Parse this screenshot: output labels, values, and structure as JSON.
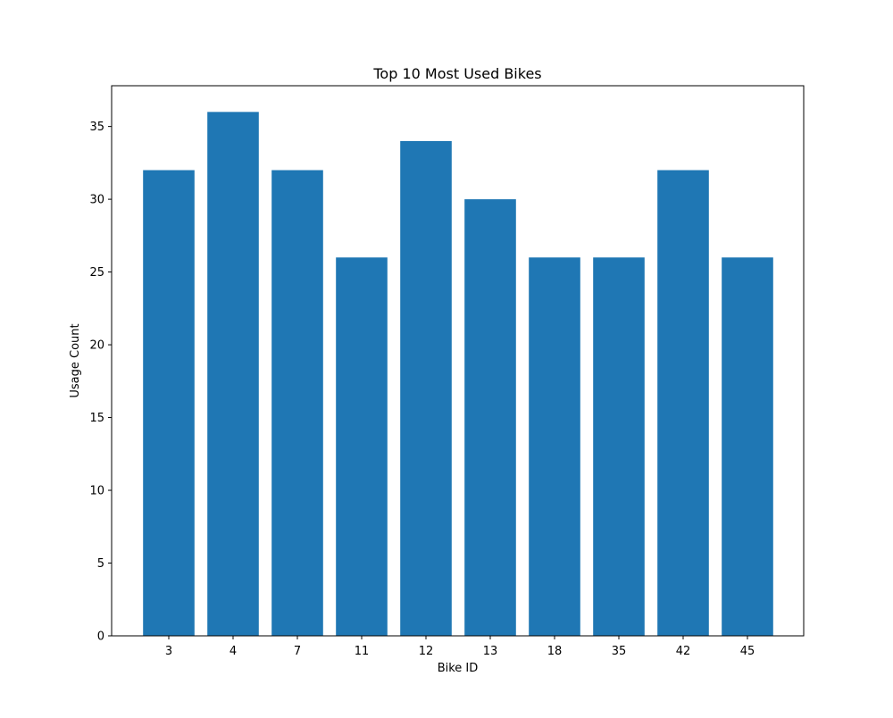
{
  "chart_data": {
    "type": "bar",
    "title": "Top 10 Most Used Bikes",
    "xlabel": "Bike ID",
    "ylabel": "Usage Count",
    "categories": [
      "3",
      "4",
      "7",
      "11",
      "12",
      "13",
      "18",
      "35",
      "42",
      "45"
    ],
    "values": [
      32,
      36,
      32,
      26,
      34,
      30,
      26,
      26,
      32,
      26
    ],
    "ylim": [
      0,
      37.8
    ],
    "yticks": [
      0,
      5,
      10,
      15,
      20,
      25,
      30,
      35
    ],
    "grid": false,
    "legend": "none",
    "bar_color": "#1f77b4"
  }
}
